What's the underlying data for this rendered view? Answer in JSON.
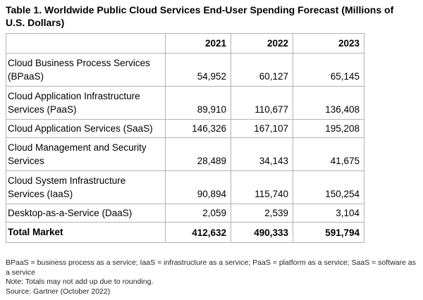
{
  "title": "Table 1. Worldwide Public Cloud Services End-User Spending Forecast (Millions of U.S. Dollars)",
  "table": {
    "columns": [
      "",
      "2021",
      "2022",
      "2023"
    ],
    "rows": [
      {
        "label": "Cloud Business Process Services (BPaaS)",
        "values": [
          "54,952",
          "60,127",
          "65,145"
        ]
      },
      {
        "label": "Cloud Application Infrastructure Services (PaaS)",
        "values": [
          "89,910",
          "110,677",
          "136,408"
        ]
      },
      {
        "label": "Cloud Application Services (SaaS)",
        "values": [
          "146,326",
          "167,107",
          "195,208"
        ]
      },
      {
        "label": "Cloud Management and Security Services",
        "values": [
          "28,489",
          "34,143",
          "41,675"
        ]
      },
      {
        "label": "Cloud System Infrastructure Services (IaaS)",
        "values": [
          "90,894",
          "115,740",
          "150,254"
        ]
      },
      {
        "label": "Desktop-as-a-Service (DaaS)",
        "values": [
          "2,059",
          "2,539",
          "3,104"
        ]
      }
    ],
    "total": {
      "label": "Total Market",
      "values": [
        "412,632",
        "490,333",
        "591,794"
      ]
    }
  },
  "notes": {
    "abbreviations": "BPaaS = business process as a service; IaaS = infrastructure as a service; PaaS = platform as a service; SaaS = software as a service",
    "rounding": "Note: Totals may not add up due to rounding.",
    "source": "Source: Gartner (October 2022)"
  }
}
